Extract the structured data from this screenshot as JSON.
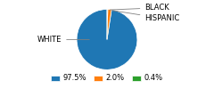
{
  "chart_data": {
    "type": "pie",
    "categories": [
      "WHITE",
      "HISPANIC",
      "BLACK"
    ],
    "values": [
      97.5,
      2.0,
      0.4
    ],
    "value_labels": [
      "97.5%",
      "2.0%",
      "0.4%"
    ],
    "legend": "lower center"
  }
}
